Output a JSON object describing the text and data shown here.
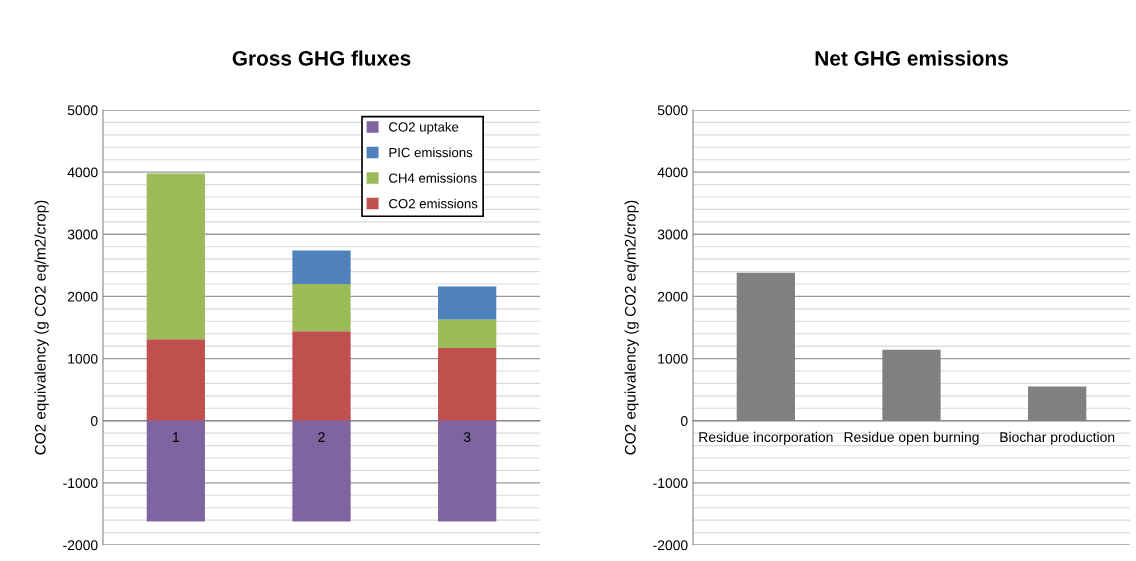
{
  "chart_data": [
    {
      "type": "bar",
      "title": "Gross GHG fluxes",
      "ylabel": "CO2 equivalency (g CO2 eq/m2/crop)",
      "categories": [
        "1",
        "2",
        "3"
      ],
      "stacked": true,
      "series": [
        {
          "name": "CO2 emissions",
          "color": "#c0504d",
          "values": [
            1310,
            1440,
            1170
          ]
        },
        {
          "name": "CH4 emissions",
          "color": "#9bbb59",
          "values": [
            2670,
            760,
            460
          ]
        },
        {
          "name": "PIC emissions",
          "color": "#4f81bd",
          "values": [
            null,
            540,
            530
          ]
        },
        {
          "name": "CO2 uptake",
          "color": "#8064a2",
          "values": [
            -1620,
            -1620,
            -1620
          ]
        }
      ],
      "ylim": [
        -2000,
        5000
      ],
      "yticks": [
        -2000,
        -1000,
        0,
        1000,
        2000,
        3000,
        4000,
        5000
      ],
      "grid": "y",
      "legend": "top right"
    },
    {
      "type": "bar",
      "title": "Net GHG emissions",
      "ylabel": "CO2 equivalency (g CO2 eq/m2/crop)",
      "categories": [
        "Residue incorporation",
        "Residue open burning",
        "Biochar production"
      ],
      "series": [
        {
          "color": "#808080",
          "values": [
            2380,
            1140,
            550
          ]
        }
      ],
      "ylim": [
        -2000,
        5000
      ],
      "yticks": [
        -2000,
        -1000,
        0,
        1000,
        2000,
        3000,
        4000,
        5000
      ],
      "grid": "y"
    }
  ]
}
